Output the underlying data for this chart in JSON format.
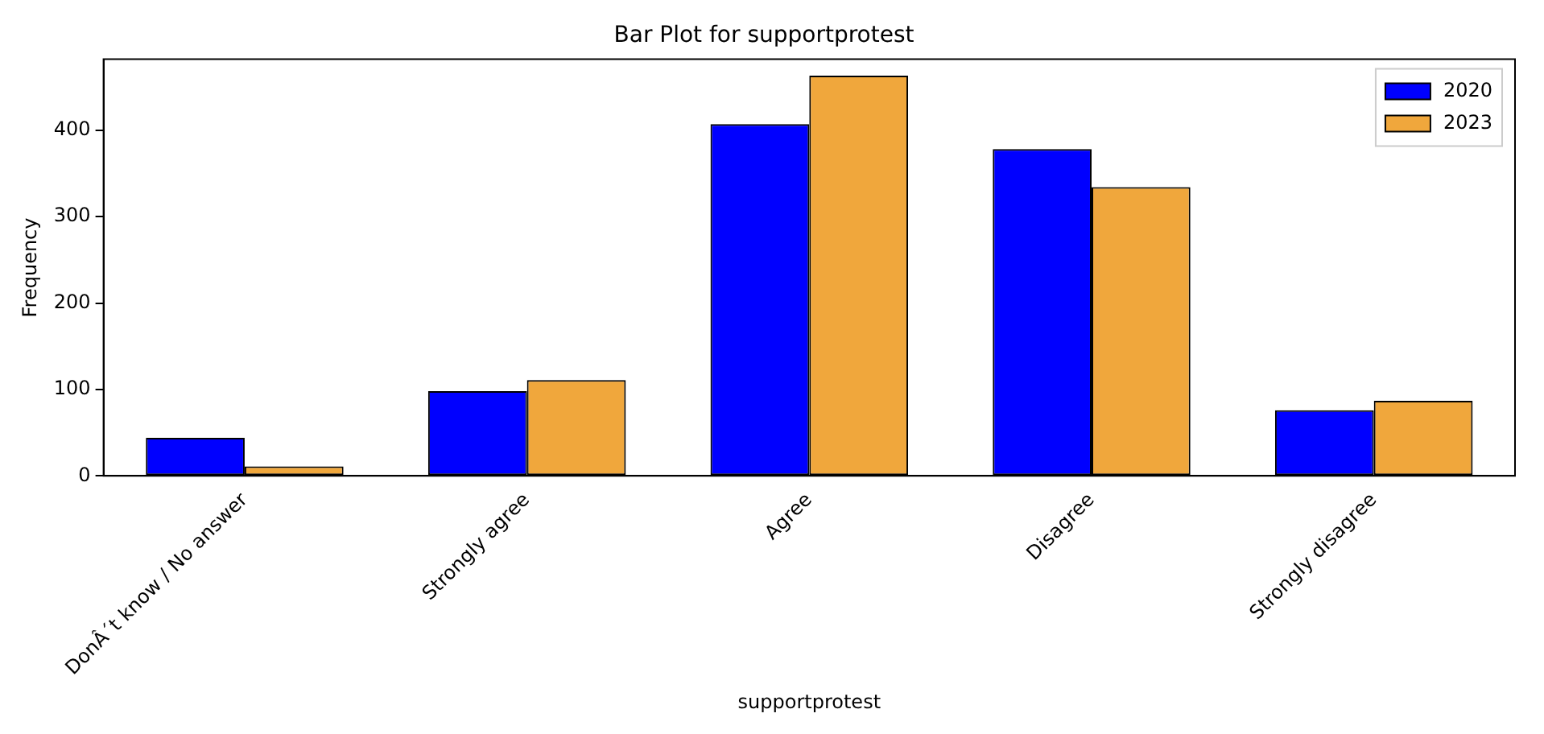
{
  "chart_data": {
    "type": "bar",
    "title": "Bar Plot for supportprotest",
    "xlabel": "supportprotest",
    "ylabel": "Frequency",
    "categories": [
      "DonÂ´t know / No answer",
      "Strongly agree",
      "Agree",
      "Disagree",
      "Strongly disagree"
    ],
    "series": [
      {
        "name": "2020",
        "color": "#0000ff",
        "values": [
          44,
          98,
          407,
          378,
          76
        ]
      },
      {
        "name": "2023",
        "color": "#f0a73c",
        "values": [
          11,
          111,
          463,
          334,
          87
        ]
      }
    ],
    "ylim": [
      0,
      482
    ],
    "yticks": [
      0,
      100,
      200,
      300,
      400
    ],
    "grid": false,
    "legend": "top right"
  }
}
